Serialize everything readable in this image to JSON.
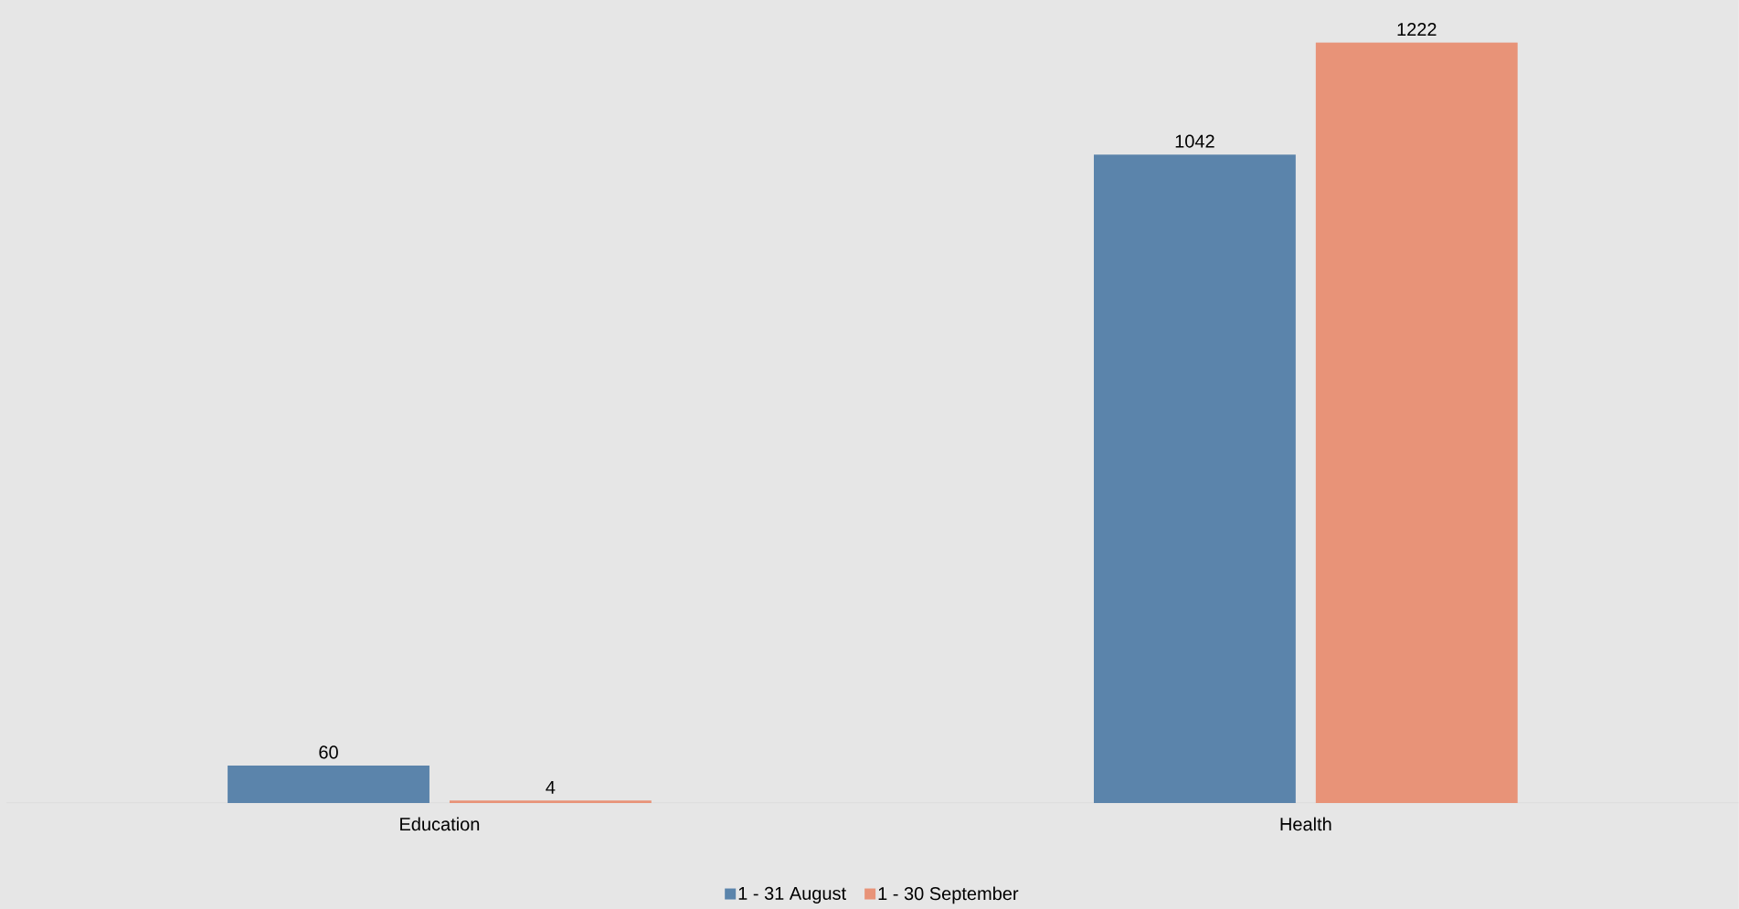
{
  "chart_data": {
    "type": "bar",
    "categories": [
      "Education",
      "Health"
    ],
    "series": [
      {
        "name": "1 - 31 August",
        "color": "#5b84ab",
        "values": [
          60,
          1042
        ]
      },
      {
        "name": "1 - 30 September",
        "color": "#e89378",
        "values": [
          4,
          1222
        ]
      }
    ],
    "data_labels": true,
    "legend": "bottom"
  }
}
